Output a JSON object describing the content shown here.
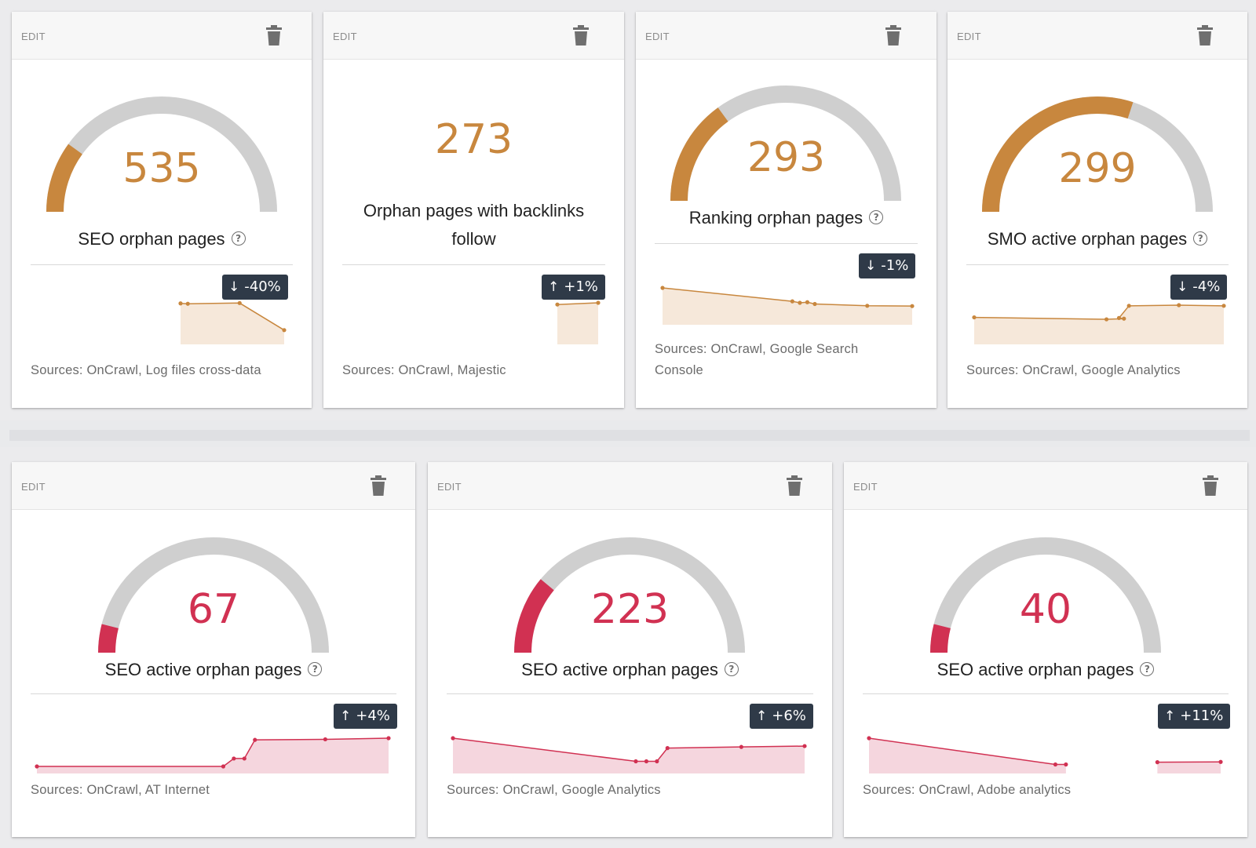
{
  "colors": {
    "orange": "#c8873e",
    "orange_fill": "#f6e8da",
    "red": "#d13152",
    "red_fill": "#f5d6de",
    "gauge_track": "#cfcfcf",
    "badge_bg": "#2f3a48"
  },
  "icons": {
    "trash": "trash-icon",
    "help": "help-circle-icon",
    "up": "arrow-up-icon",
    "down": "arrow-down-icon"
  },
  "cards": [
    {
      "edit_label": "EDIT",
      "value": "535",
      "gauge_fraction": 0.2,
      "label": "SEO orphan pages",
      "help": "?",
      "trend_arrow": "↓",
      "trend": "-40%",
      "sparkline": [
        0.94,
        0.93,
        0.95,
        0.2
      ],
      "sources": "Sources: OnCrawl, Log files cross-data"
    },
    {
      "edit_label": "EDIT",
      "value": "273",
      "label_line1": "Orphan pages with backlinks",
      "label_line2": "follow",
      "trend_arrow": "↑",
      "trend": "+1%",
      "sparkline": [
        0.95,
        1.0
      ],
      "sources": "Sources: OnCrawl, Majestic"
    },
    {
      "edit_label": "EDIT",
      "value": "293",
      "gauge_fraction": 0.3,
      "label": "Ranking orphan pages",
      "help": "?",
      "trend_arrow": "↓",
      "trend": "-1%",
      "sparkline": [
        1.0,
        0.55,
        0.5,
        0.52,
        0.46,
        0.4,
        0.39
      ],
      "sources_line1": "Sources: OnCrawl, Google Search",
      "sources_line2": "Console"
    },
    {
      "edit_label": "EDIT",
      "value": "299",
      "gauge_fraction": 0.6,
      "label": "SMO active orphan pages",
      "help": "?",
      "trend_arrow": "↓",
      "trend": "-4%",
      "sparkline": [
        0.62,
        0.56,
        0.58,
        0.6,
        0.98,
        1.0,
        0.98
      ],
      "sources": "Sources: OnCrawl, Google Analytics"
    },
    {
      "edit_label": "EDIT",
      "value": "67",
      "gauge_fraction": 0.08,
      "label": "SEO active orphan pages",
      "help": "?",
      "trend_arrow": "↑",
      "trend": "+4%",
      "sparkline": [
        0.0,
        0.0,
        0.28,
        0.28,
        0.94,
        0.96,
        1.0
      ],
      "sources": "Sources: OnCrawl, AT Internet"
    },
    {
      "edit_label": "EDIT",
      "value": "223",
      "gauge_fraction": 0.22,
      "label": "SEO active orphan pages",
      "help": "?",
      "trend_arrow": "↑",
      "trend": "+6%",
      "sparkline": [
        1.0,
        0.18,
        0.18,
        0.18,
        0.65,
        0.69,
        0.72
      ],
      "sources": "Sources: OnCrawl, Google Analytics"
    },
    {
      "edit_label": "EDIT",
      "value": "40",
      "gauge_fraction": 0.08,
      "label": "SEO active orphan pages",
      "help": "?",
      "trend_arrow": "↑",
      "trend": "+11%",
      "sparkline": [
        1.0,
        0.07,
        0.07,
        0.15,
        0.16
      ],
      "sources": "Sources: OnCrawl, Adobe analytics"
    }
  ]
}
